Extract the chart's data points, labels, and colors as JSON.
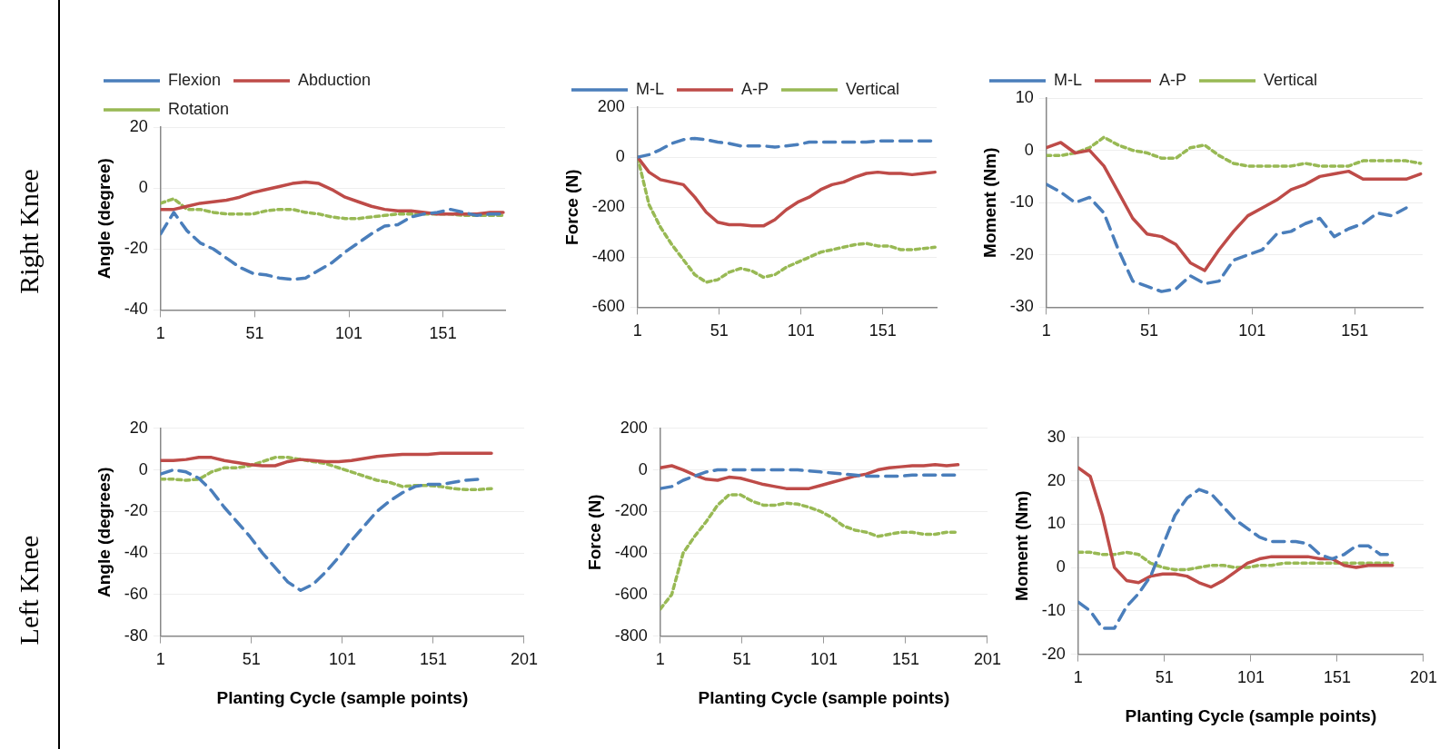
{
  "chart_data": [
    {
      "type": "line",
      "ylabel": "Angle (degree)",
      "annotations": [
        "Right Knee"
      ],
      "legend": "top",
      "grid": "y",
      "marker": "none",
      "x": [
        1,
        8,
        15,
        22,
        29,
        36,
        43,
        50,
        57,
        64,
        71,
        78,
        85,
        92,
        99,
        106,
        113,
        120,
        127,
        134,
        141,
        148,
        155,
        162,
        169,
        176,
        183
      ],
      "xlim": [
        1,
        184
      ],
      "xticks": [
        1,
        51,
        101,
        151
      ],
      "ylim": [
        -40,
        20
      ],
      "yticks": [
        -40,
        -20,
        0,
        20
      ],
      "series": [
        {
          "name": "Flexion",
          "color": "#4a7ebb",
          "line_style": "dashed",
          "values": [
            -15,
            -8,
            -14,
            -18,
            -20,
            -23,
            -26,
            -28,
            -28.5,
            -29.5,
            -30,
            -29.5,
            -27,
            -24.5,
            -21,
            -18,
            -15,
            -12.5,
            -12,
            -9.5,
            -8.5,
            -8,
            -7,
            -8,
            -9,
            -8.5,
            -8.5
          ]
        },
        {
          "name": "Abduction",
          "color": "#be4b48",
          "line_style": "solid",
          "values": [
            -7,
            -7,
            -6,
            -5,
            -4.5,
            -4,
            -3,
            -1.5,
            -0.5,
            0.5,
            1.5,
            2,
            1.5,
            -0.5,
            -3,
            -4.5,
            -6,
            -7,
            -7.5,
            -7.5,
            -8,
            -8.5,
            -8.5,
            -8.5,
            -8.5,
            -8,
            -8
          ]
        },
        {
          "name": "Rotation",
          "color": "#98b954",
          "line_style": "dotted",
          "values": [
            -5,
            -3.5,
            -7,
            -7,
            -8,
            -8.5,
            -8.5,
            -8.5,
            -7.5,
            -7,
            -7,
            -8,
            -8.5,
            -9.5,
            -10,
            -10,
            -9.5,
            -9,
            -8.5,
            -8.5,
            -8.5,
            -8.5,
            -8.5,
            -9,
            -9,
            -9,
            -9
          ]
        }
      ]
    },
    {
      "type": "line",
      "ylabel": "Force (N)",
      "legend": "top",
      "grid": "y",
      "marker": "none",
      "x": [
        1,
        8,
        15,
        22,
        29,
        36,
        43,
        50,
        57,
        64,
        71,
        78,
        85,
        92,
        99,
        106,
        113,
        120,
        127,
        134,
        141,
        148,
        155,
        162,
        169,
        176,
        183
      ],
      "xlim": [
        1,
        184
      ],
      "xticks": [
        1,
        51,
        101,
        151
      ],
      "ylim": [
        -600,
        200
      ],
      "yticks": [
        -600,
        -400,
        -200,
        0,
        200
      ],
      "series": [
        {
          "name": "M-L",
          "color": "#4a7ebb",
          "line_style": "dashed",
          "values": [
            0,
            10,
            30,
            55,
            70,
            75,
            70,
            60,
            55,
            45,
            45,
            45,
            40,
            45,
            50,
            60,
            60,
            60,
            60,
            60,
            60,
            65,
            65,
            65,
            65,
            65,
            65
          ]
        },
        {
          "name": "A-P",
          "color": "#be4b48",
          "line_style": "solid",
          "values": [
            0,
            -60,
            -90,
            -100,
            -110,
            -160,
            -220,
            -260,
            -270,
            -270,
            -275,
            -275,
            -250,
            -210,
            -180,
            -160,
            -130,
            -110,
            -100,
            -80,
            -65,
            -60,
            -65,
            -65,
            -70,
            -65,
            -60
          ]
        },
        {
          "name": "Vertical",
          "color": "#98b954",
          "line_style": "dotted",
          "values": [
            0,
            -190,
            -280,
            -350,
            -410,
            -470,
            -500,
            -490,
            -460,
            -445,
            -455,
            -480,
            -470,
            -440,
            -420,
            -400,
            -380,
            -370,
            -360,
            -350,
            -345,
            -355,
            -355,
            -370,
            -370,
            -365,
            -360
          ]
        }
      ]
    },
    {
      "type": "line",
      "ylabel": "Moment (Nm)",
      "legend": "top",
      "grid": "y",
      "marker": "none",
      "x": [
        1,
        8,
        15,
        22,
        29,
        36,
        43,
        50,
        57,
        64,
        71,
        78,
        85,
        92,
        99,
        106,
        113,
        120,
        127,
        134,
        141,
        148,
        155,
        162,
        169,
        176,
        183
      ],
      "xlim": [
        1,
        184
      ],
      "xticks": [
        1,
        51,
        101,
        151
      ],
      "ylim": [
        -30,
        10
      ],
      "yticks": [
        -30,
        -20,
        -10,
        0,
        10
      ],
      "series": [
        {
          "name": "M-L",
          "color": "#4a7ebb",
          "line_style": "dashed",
          "values": [
            -6.5,
            -8,
            -10,
            -9,
            -12,
            -19,
            -25,
            -26,
            -27,
            -26.5,
            -24,
            -25.5,
            -25,
            -21,
            -20,
            -19,
            -16,
            -15.5,
            -14,
            -13,
            -16.5,
            -15,
            -14,
            -12,
            -12.5,
            -11,
            null
          ]
        },
        {
          "name": "A-P",
          "color": "#be4b48",
          "line_style": "solid",
          "values": [
            0.5,
            1.5,
            -0.5,
            0,
            -3,
            -8,
            -13,
            -16,
            -16.5,
            -18,
            -21.5,
            -23,
            -19,
            -15.5,
            -12.5,
            -11,
            -9.5,
            -7.5,
            -6.5,
            -5,
            -4.5,
            -4,
            -5.5,
            -5.5,
            -5.5,
            -5.5,
            -4.5
          ]
        },
        {
          "name": "Vertical",
          "color": "#98b954",
          "line_style": "dotted",
          "values": [
            -1,
            -1,
            -0.5,
            0.5,
            2.5,
            1,
            0,
            -0.5,
            -1.5,
            -1.5,
            0.5,
            1,
            -1,
            -2.5,
            -3,
            -3,
            -3,
            -3,
            -2.5,
            -3,
            -3,
            -3,
            -2,
            -2,
            -2,
            -2,
            -2.5
          ]
        }
      ]
    },
    {
      "type": "line",
      "ylabel": "Angle (degrees)",
      "xlabel": "Planting Cycle (sample points)",
      "annotations": [
        "Left Knee"
      ],
      "grid": "y",
      "marker": "none",
      "x": [
        1,
        8,
        15,
        22,
        29,
        36,
        43,
        50,
        57,
        64,
        71,
        78,
        85,
        92,
        99,
        106,
        113,
        120,
        127,
        134,
        141,
        148,
        155,
        162,
        169,
        176,
        183
      ],
      "xlim": [
        1,
        201
      ],
      "xticks": [
        1,
        51,
        101,
        151,
        201
      ],
      "ylim": [
        -80,
        20
      ],
      "yticks": [
        -80,
        -60,
        -40,
        -20,
        0,
        20
      ],
      "series": [
        {
          "color": "#4a7ebb",
          "line_style": "dashed",
          "values": [
            -2,
            0,
            -1,
            -4,
            -10,
            -18,
            -25,
            -32,
            -40,
            -47,
            -54,
            -58,
            -55,
            -49,
            -42,
            -34,
            -27,
            -20,
            -15,
            -11,
            -8,
            -7,
            -7,
            -6,
            -5,
            -4.5,
            null
          ]
        },
        {
          "color": "#be4b48",
          "line_style": "solid",
          "values": [
            4.5,
            4.5,
            5,
            6,
            6,
            4.5,
            3.5,
            2.5,
            2,
            2,
            4,
            5,
            4.5,
            4,
            4,
            4.5,
            5.5,
            6.5,
            7,
            7.5,
            7.5,
            7.5,
            8,
            8,
            8,
            8,
            8
          ]
        },
        {
          "color": "#98b954",
          "line_style": "dotted",
          "values": [
            -4.5,
            -4.5,
            -5,
            -4.5,
            -1,
            1,
            1,
            2,
            4,
            6,
            6,
            5,
            4,
            3,
            1,
            -1,
            -3,
            -5,
            -6,
            -8,
            -7.5,
            -7.5,
            -8,
            -9,
            -9.5,
            -9.5,
            -9
          ]
        }
      ]
    },
    {
      "type": "line",
      "ylabel": "Force (N)",
      "xlabel": "Planting Cycle (sample points)",
      "grid": "y",
      "marker": "none",
      "x": [
        1,
        8,
        15,
        22,
        29,
        36,
        43,
        50,
        57,
        64,
        71,
        78,
        85,
        92,
        99,
        106,
        113,
        120,
        127,
        134,
        141,
        148,
        155,
        162,
        169,
        176,
        183
      ],
      "xlim": [
        1,
        201
      ],
      "xticks": [
        1,
        51,
        101,
        151,
        201
      ],
      "ylim": [
        -800,
        200
      ],
      "yticks": [
        -800,
        -600,
        -400,
        -200,
        0,
        200
      ],
      "series": [
        {
          "color": "#4a7ebb",
          "line_style": "dashed",
          "values": [
            -90,
            -80,
            -50,
            -30,
            -10,
            0,
            0,
            0,
            0,
            0,
            0,
            0,
            0,
            -5,
            -10,
            -15,
            -20,
            -25,
            -30,
            -30,
            -30,
            -30,
            -25,
            -25,
            -25,
            -25,
            -25
          ]
        },
        {
          "color": "#be4b48",
          "line_style": "solid",
          "values": [
            10,
            20,
            0,
            -25,
            -45,
            -50,
            -35,
            -40,
            -55,
            -70,
            -80,
            -90,
            -90,
            -90,
            -75,
            -60,
            -45,
            -30,
            -20,
            0,
            10,
            15,
            20,
            20,
            25,
            20,
            25
          ]
        },
        {
          "color": "#98b954",
          "line_style": "dotted",
          "values": [
            -670,
            -600,
            -400,
            -320,
            -250,
            -170,
            -120,
            -120,
            -150,
            -170,
            -170,
            -160,
            -165,
            -180,
            -200,
            -230,
            -270,
            -290,
            -300,
            -320,
            -310,
            -300,
            -300,
            -310,
            -310,
            -300,
            -300
          ]
        }
      ]
    },
    {
      "type": "line",
      "ylabel": "Moment (Nm)",
      "xlabel": "Planting Cycle (sample points)",
      "grid": "y",
      "marker": "none",
      "x": [
        1,
        8,
        15,
        22,
        29,
        36,
        43,
        50,
        57,
        64,
        71,
        78,
        85,
        92,
        99,
        106,
        113,
        120,
        127,
        134,
        141,
        148,
        155,
        162,
        169,
        176,
        183
      ],
      "xlim": [
        1,
        201
      ],
      "xticks": [
        1,
        51,
        101,
        151,
        201
      ],
      "ylim": [
        -20,
        30
      ],
      "yticks": [
        -20,
        -10,
        0,
        10,
        20,
        30
      ],
      "series": [
        {
          "color": "#4a7ebb",
          "line_style": "dashed",
          "values": [
            -8,
            -10,
            -14,
            -14,
            -9,
            -6,
            -2,
            5,
            12,
            16,
            18,
            17,
            14,
            11,
            9,
            7,
            6,
            6,
            6,
            5.5,
            3,
            2,
            3,
            5,
            5,
            3,
            3
          ]
        },
        {
          "color": "#be4b48",
          "line_style": "solid",
          "values": [
            23,
            21,
            12,
            0,
            -3,
            -3.5,
            -2,
            -1.5,
            -1.5,
            -2,
            -3.5,
            -4.5,
            -3,
            -1,
            1,
            2,
            2.5,
            2.5,
            2.5,
            2.5,
            2,
            2,
            0.5,
            0,
            0.5,
            0.5,
            0.5
          ]
        },
        {
          "color": "#98b954",
          "line_style": "dotted",
          "values": [
            3.5,
            3.5,
            3,
            3,
            3.5,
            3,
            1,
            0,
            -0.5,
            -0.5,
            0,
            0.5,
            0.5,
            0,
            0,
            0.5,
            0.5,
            1,
            1,
            1,
            1,
            1,
            1,
            1,
            1,
            1,
            1
          ]
        }
      ]
    }
  ]
}
